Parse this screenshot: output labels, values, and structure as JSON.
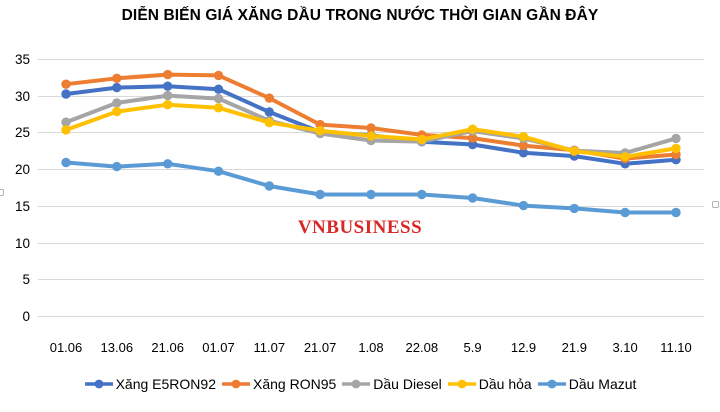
{
  "watermark": "VNBUSINESS",
  "chart_data": {
    "type": "line",
    "title": "DIỄN BIẾN GIÁ XĂNG DẦU TRONG NƯỚC THỜI GIAN GẦN ĐÂY",
    "categories": [
      "01.06",
      "13.06",
      "21.06",
      "01.07",
      "11.07",
      "21.07",
      "1.08",
      "22.08",
      "5.9",
      "12.9",
      "21.9",
      "3.10",
      "11.10"
    ],
    "series": [
      {
        "name": "Xăng E5RON92",
        "color": "#4472C4",
        "values": [
          30.23,
          31.11,
          31.3,
          30.89,
          27.78,
          25.07,
          24.62,
          23.72,
          23.35,
          22.23,
          21.78,
          20.73,
          21.29
        ]
      },
      {
        "name": "Xăng RON95",
        "color": "#ED7D31",
        "values": [
          31.57,
          32.37,
          32.87,
          32.76,
          29.67,
          26.07,
          25.6,
          24.66,
          24.23,
          23.21,
          22.58,
          21.44,
          22.0
        ]
      },
      {
        "name": "Dầu Diesel",
        "color": "#A5A5A5",
        "values": [
          26.39,
          29.02,
          30.01,
          29.61,
          26.59,
          24.85,
          23.9,
          23.75,
          25.18,
          24.18,
          22.53,
          22.2,
          24.19
        ]
      },
      {
        "name": "Dầu hỏa",
        "color": "#FFC000",
        "values": [
          25.34,
          27.83,
          28.78,
          28.35,
          26.34,
          25.24,
          24.53,
          24.05,
          25.44,
          24.42,
          22.44,
          21.68,
          22.82
        ]
      },
      {
        "name": "Dầu Mazut",
        "color": "#5B9BD5",
        "values": [
          20.9,
          20.35,
          20.73,
          19.72,
          17.71,
          16.54,
          16.54,
          16.54,
          16.07,
          15.03,
          14.65,
          14.09,
          14.09
        ]
      }
    ],
    "y_ticks": [
      0,
      5,
      10,
      15,
      20,
      25,
      30,
      35
    ],
    "ylim": [
      0,
      35
    ],
    "grid": "horizontal",
    "grid_color": "#D9D9D9",
    "axis_text_color": "#000000",
    "background_color": "#FFFFFF",
    "watermark_color": "#D92626",
    "legend_position": "bottom",
    "marker": "circle"
  }
}
